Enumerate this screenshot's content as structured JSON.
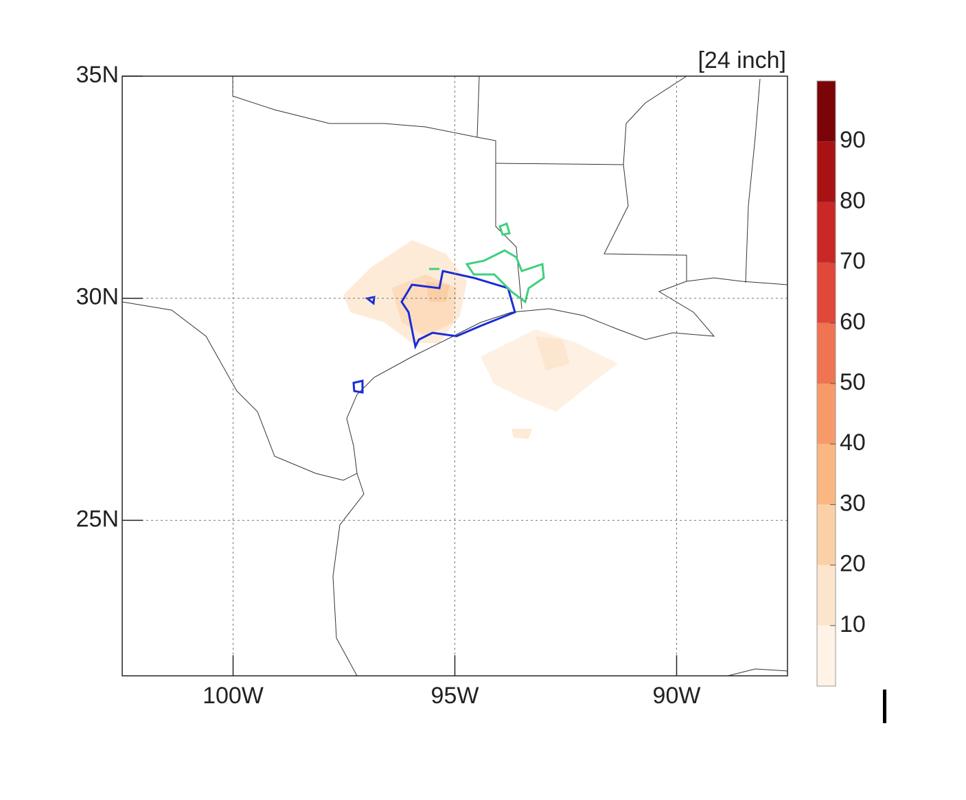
{
  "map": {
    "annotation": "[24 inch]",
    "xlim": [
      -102.5,
      -87.5
    ],
    "ylim": [
      21.5,
      35
    ],
    "xticks": [
      {
        "value": -100,
        "label": "100W"
      },
      {
        "value": -95,
        "label": "95W"
      },
      {
        "value": -90,
        "label": "90W"
      }
    ],
    "yticks": [
      {
        "value": 35,
        "label": "35N"
      },
      {
        "value": 30,
        "label": "30N"
      },
      {
        "value": 25,
        "label": "25N"
      }
    ],
    "grid": true
  },
  "colorbar": {
    "lim": [
      0,
      100
    ],
    "ticks": [
      10,
      20,
      30,
      40,
      50,
      60,
      70,
      80,
      90
    ],
    "colors": [
      "#fef3e6",
      "#fde4cc",
      "#fcd0a6",
      "#fbb782",
      "#f79a6a",
      "#ee7452",
      "#e0483a",
      "#c92826",
      "#a91214",
      "#7a0407"
    ]
  }
}
